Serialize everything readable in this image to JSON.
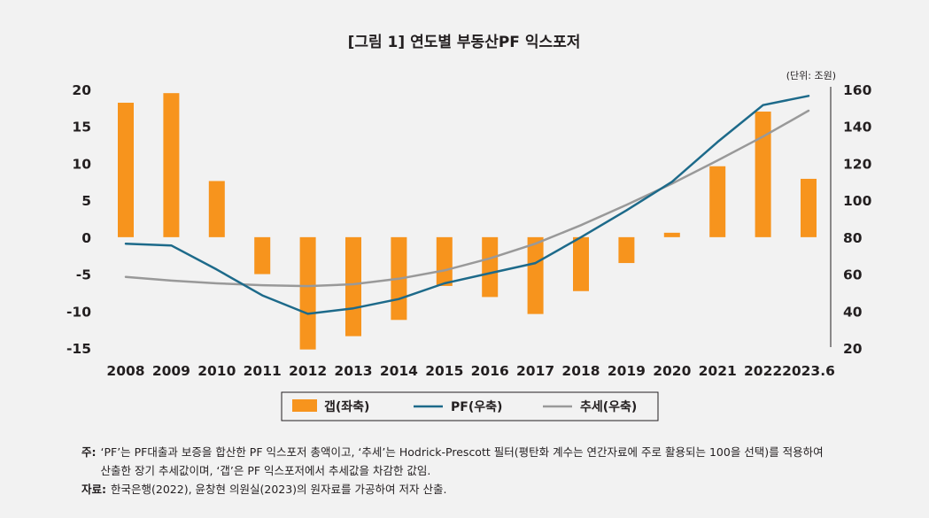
{
  "chart_data": {
    "type": "bar+line",
    "title": "[그림 1] 연도별 부동산PF 익스포저",
    "unit_label": "(단위: 조원)",
    "categories": [
      "2008",
      "2009",
      "2010",
      "2011",
      "2012",
      "2013",
      "2014",
      "2015",
      "2016",
      "2017",
      "2018",
      "2019",
      "2020",
      "2021",
      "2022",
      "2023.6"
    ],
    "left_axis": {
      "ylim": [
        -15,
        20
      ],
      "ticks": [
        20,
        15,
        10,
        5,
        0,
        -5,
        -10,
        -15
      ]
    },
    "right_axis": {
      "ylim": [
        20,
        160
      ],
      "ticks": [
        160,
        140,
        120,
        100,
        80,
        60,
        40,
        20
      ]
    },
    "series": [
      {
        "name": "갭(좌축)",
        "type": "bar",
        "axis": "left",
        "color": "#f7941d",
        "values": [
          18.2,
          19.5,
          7.6,
          -5.0,
          -15.2,
          -13.4,
          -11.2,
          -6.6,
          -8.1,
          -10.4,
          -7.3,
          -3.5,
          0.6,
          9.6,
          17.0,
          7.9
        ]
      },
      {
        "name": "PF(우축)",
        "type": "line",
        "axis": "right",
        "color": "#1d6a8a",
        "values": [
          76.5,
          75.5,
          62.5,
          48.5,
          38.5,
          41.5,
          46.5,
          55.0,
          60.5,
          66.0,
          80.0,
          94.5,
          110.0,
          131.5,
          151.5,
          156.5
        ]
      },
      {
        "name": "추세(우축)",
        "type": "line",
        "axis": "right",
        "color": "#999999",
        "values": [
          58.5,
          56.5,
          55.0,
          54.0,
          53.5,
          54.5,
          57.5,
          62.0,
          68.5,
          76.5,
          86.5,
          97.5,
          109.0,
          121.5,
          134.5,
          148.5
        ]
      }
    ]
  },
  "notes": {
    "note_label": "주:",
    "note_text": "‘PF’는 PF대출과 보증을 합산한 PF 익스포저 총액이고, ‘추세’는 Hodrick-Prescott 필터(평탄화 계수는 연간자료에 주로 활용되는 100을 선택)를 적용하여 산출한 장기 추세값이며, ‘갭’은 PF 익스포저에서 추세값을 차감한 값임.",
    "source_label": "자료:",
    "source_text": "한국은행(2022), 윤창현 의원실(2023)의 원자료를 가공하여 저자 산출."
  }
}
